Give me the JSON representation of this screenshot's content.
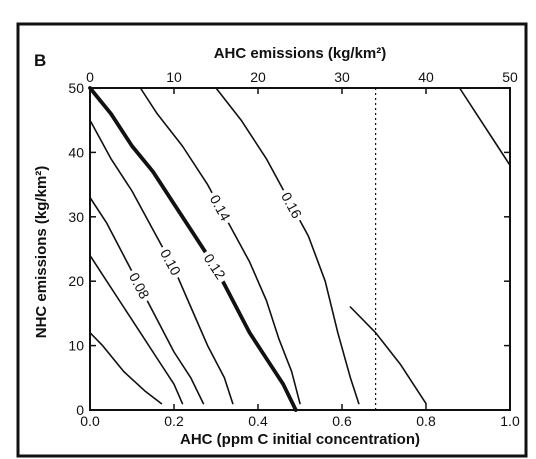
{
  "chart_data": {
    "type": "contour",
    "panel_label": "B",
    "xlabel": "AHC (ppm C initial concentration)",
    "x2label": "AHC emissions (kg/km²)",
    "ylabel": "NHC emissions (kg/km²)",
    "xlim": [
      0,
      1
    ],
    "x2lim": [
      0,
      50
    ],
    "ylim": [
      0,
      50
    ],
    "xticks": [
      "0.0",
      "0.2",
      "0.4",
      "0.6",
      "0.8",
      "1.0"
    ],
    "x2ticks": [
      "0",
      "10",
      "20",
      "30",
      "40",
      "50"
    ],
    "yticks": [
      "0",
      "10",
      "20",
      "30",
      "40",
      "50"
    ],
    "reference_line": {
      "x": 0.68,
      "style": "dotted"
    },
    "contours": [
      {
        "level": "",
        "points": [
          [
            0.0,
            12
          ],
          [
            0.03,
            10
          ],
          [
            0.08,
            6
          ],
          [
            0.13,
            3
          ],
          [
            0.17,
            1
          ]
        ]
      },
      {
        "level": "",
        "points": [
          [
            0.0,
            24
          ],
          [
            0.03,
            21
          ],
          [
            0.08,
            16
          ],
          [
            0.12,
            12
          ],
          [
            0.16,
            8
          ],
          [
            0.2,
            4
          ],
          [
            0.22,
            1
          ]
        ]
      },
      {
        "level": "0.08",
        "points": [
          [
            0.0,
            33
          ],
          [
            0.04,
            29
          ],
          [
            0.08,
            24
          ],
          [
            0.12,
            19
          ],
          [
            0.16,
            14
          ],
          [
            0.2,
            9
          ],
          [
            0.24,
            5
          ],
          [
            0.27,
            1
          ]
        ]
      },
      {
        "level": "0.10",
        "points": [
          [
            0.0,
            45
          ],
          [
            0.05,
            39
          ],
          [
            0.1,
            34
          ],
          [
            0.15,
            28
          ],
          [
            0.2,
            22
          ],
          [
            0.24,
            16
          ],
          [
            0.28,
            10
          ],
          [
            0.32,
            5
          ],
          [
            0.34,
            1
          ]
        ]
      },
      {
        "level": "0.12",
        "points": [
          [
            0.0,
            50
          ],
          [
            0.05,
            46
          ],
          [
            0.1,
            41
          ],
          [
            0.15,
            37
          ],
          [
            0.2,
            32
          ],
          [
            0.25,
            27
          ],
          [
            0.3,
            22
          ],
          [
            0.34,
            17
          ],
          [
            0.38,
            12
          ],
          [
            0.42,
            8
          ],
          [
            0.46,
            4
          ],
          [
            0.49,
            0
          ]
        ]
      },
      {
        "level": "0.14",
        "points": [
          [
            0.12,
            50
          ],
          [
            0.16,
            46
          ],
          [
            0.22,
            41
          ],
          [
            0.28,
            35
          ],
          [
            0.33,
            29
          ],
          [
            0.38,
            23
          ],
          [
            0.42,
            17
          ],
          [
            0.45,
            11
          ],
          [
            0.48,
            6
          ],
          [
            0.5,
            1
          ]
        ]
      },
      {
        "level": "0.16",
        "points": [
          [
            0.3,
            50
          ],
          [
            0.36,
            45
          ],
          [
            0.42,
            39
          ],
          [
            0.47,
            33
          ],
          [
            0.52,
            27
          ],
          [
            0.56,
            20
          ],
          [
            0.59,
            12
          ],
          [
            0.62,
            5
          ],
          [
            0.64,
            1
          ]
        ]
      },
      {
        "level": "",
        "points": [
          [
            0.62,
            16
          ],
          [
            0.68,
            12
          ],
          [
            0.74,
            7
          ],
          [
            0.78,
            3
          ],
          [
            0.8,
            1
          ]
        ]
      },
      {
        "level": "",
        "points": [
          [
            0.88,
            50
          ],
          [
            0.92,
            46
          ],
          [
            0.96,
            42
          ],
          [
            1.0,
            38
          ]
        ]
      }
    ]
  }
}
